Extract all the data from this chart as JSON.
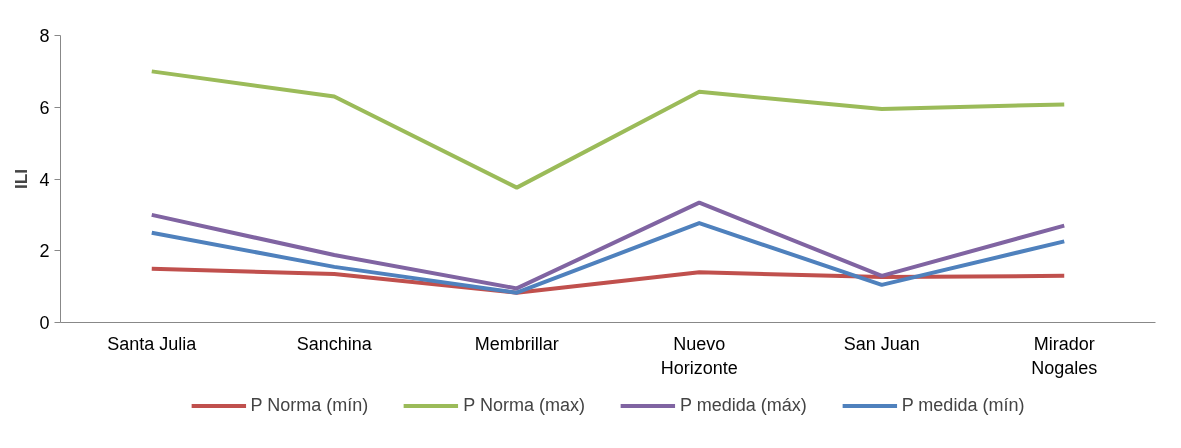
{
  "chart_data": {
    "type": "line",
    "ylabel": "ILI",
    "categories": [
      "Santa Julia",
      "Sanchina",
      "Membrillar",
      "Nuevo Horizonte",
      "San Juan",
      "Mirador Nogales"
    ],
    "series": [
      {
        "name": "P Norma (mín)",
        "color": "#c0504d",
        "values": [
          1.5,
          1.35,
          0.83,
          1.4,
          1.27,
          1.3
        ]
      },
      {
        "name": "P Norma (max)",
        "color": "#9bbb59",
        "values": [
          7.0,
          6.3,
          3.76,
          6.43,
          5.95,
          6.08
        ]
      },
      {
        "name": "P medida (máx)",
        "color": "#8064a2",
        "values": [
          3.0,
          1.88,
          0.95,
          3.34,
          1.3,
          2.7
        ]
      },
      {
        "name": "P medida (mín)",
        "color": "#4f81bd",
        "values": [
          2.5,
          1.55,
          0.83,
          2.77,
          1.05,
          2.26
        ]
      }
    ],
    "ylim": [
      0,
      8
    ],
    "yticks": [
      0,
      2,
      4,
      6,
      8
    ],
    "grid": false,
    "legend": "bottom",
    "marker": "none",
    "line_style": "solid"
  }
}
